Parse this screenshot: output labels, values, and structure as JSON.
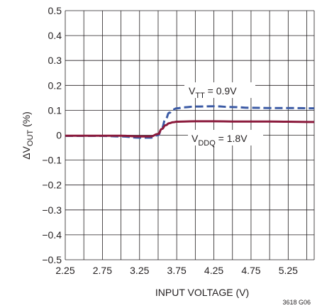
{
  "chart_data": {
    "type": "line",
    "title": "",
    "xlabel": "INPUT VOLTAGE (V)",
    "ylabel": {
      "prefix": "ΔV",
      "sub": "OUT",
      "suffix": " (%)"
    },
    "xlim": [
      2.25,
      5.6
    ],
    "ylim": [
      -0.5,
      0.5
    ],
    "x_ticks": [
      "2.25",
      "2.75",
      "3.25",
      "3.75",
      "4.25",
      "4.75",
      "5.25"
    ],
    "x_tick_values": [
      2.25,
      2.75,
      3.25,
      3.75,
      4.25,
      4.75,
      5.25
    ],
    "y_ticks": [
      "0.5",
      "0.4",
      "0.3",
      "0.2",
      "0.1",
      "0",
      "−0.1",
      "−0.2",
      "−0.3",
      "−0.4",
      "−0.5"
    ],
    "y_tick_values": [
      0.5,
      0.4,
      0.3,
      0.2,
      0.1,
      0,
      -0.1,
      -0.2,
      -0.3,
      -0.4,
      -0.5
    ],
    "x_grid_values": [
      2.25,
      2.5,
      2.75,
      3.0,
      3.25,
      3.5,
      3.75,
      4.0,
      4.25,
      4.5,
      4.75,
      5.0,
      5.25,
      5.5,
      5.6
    ],
    "grid": true,
    "series": [
      {
        "name_parts": [
          "V",
          "TT",
          " = 0.9V"
        ],
        "color": "#3c5ba5",
        "style": "dashed",
        "x": [
          2.25,
          2.75,
          3.0,
          3.25,
          3.4,
          3.5,
          3.55,
          3.6,
          3.65,
          3.7,
          3.75,
          3.85,
          4.0,
          4.25,
          4.5,
          4.75,
          5.0,
          5.25,
          5.6
        ],
        "y": [
          -0.003,
          -0.003,
          -0.005,
          -0.01,
          -0.01,
          0.0,
          0.03,
          0.065,
          0.09,
          0.103,
          0.108,
          0.112,
          0.115,
          0.116,
          0.113,
          0.11,
          0.109,
          0.109,
          0.108
        ]
      },
      {
        "name_parts": [
          "V",
          "DDQ",
          " = 1.8V"
        ],
        "color": "#8b1a3c",
        "style": "solid",
        "x": [
          2.25,
          2.75,
          3.0,
          3.25,
          3.4,
          3.5,
          3.55,
          3.6,
          3.65,
          3.7,
          3.75,
          3.85,
          4.0,
          4.25,
          4.5,
          4.75,
          5.0,
          5.25,
          5.6
        ],
        "y": [
          -0.002,
          -0.002,
          -0.002,
          -0.005,
          -0.005,
          0.005,
          0.025,
          0.04,
          0.048,
          0.052,
          0.054,
          0.055,
          0.056,
          0.056,
          0.055,
          0.055,
          0.055,
          0.054,
          0.053
        ]
      }
    ]
  },
  "figure_code": "3618 G06"
}
